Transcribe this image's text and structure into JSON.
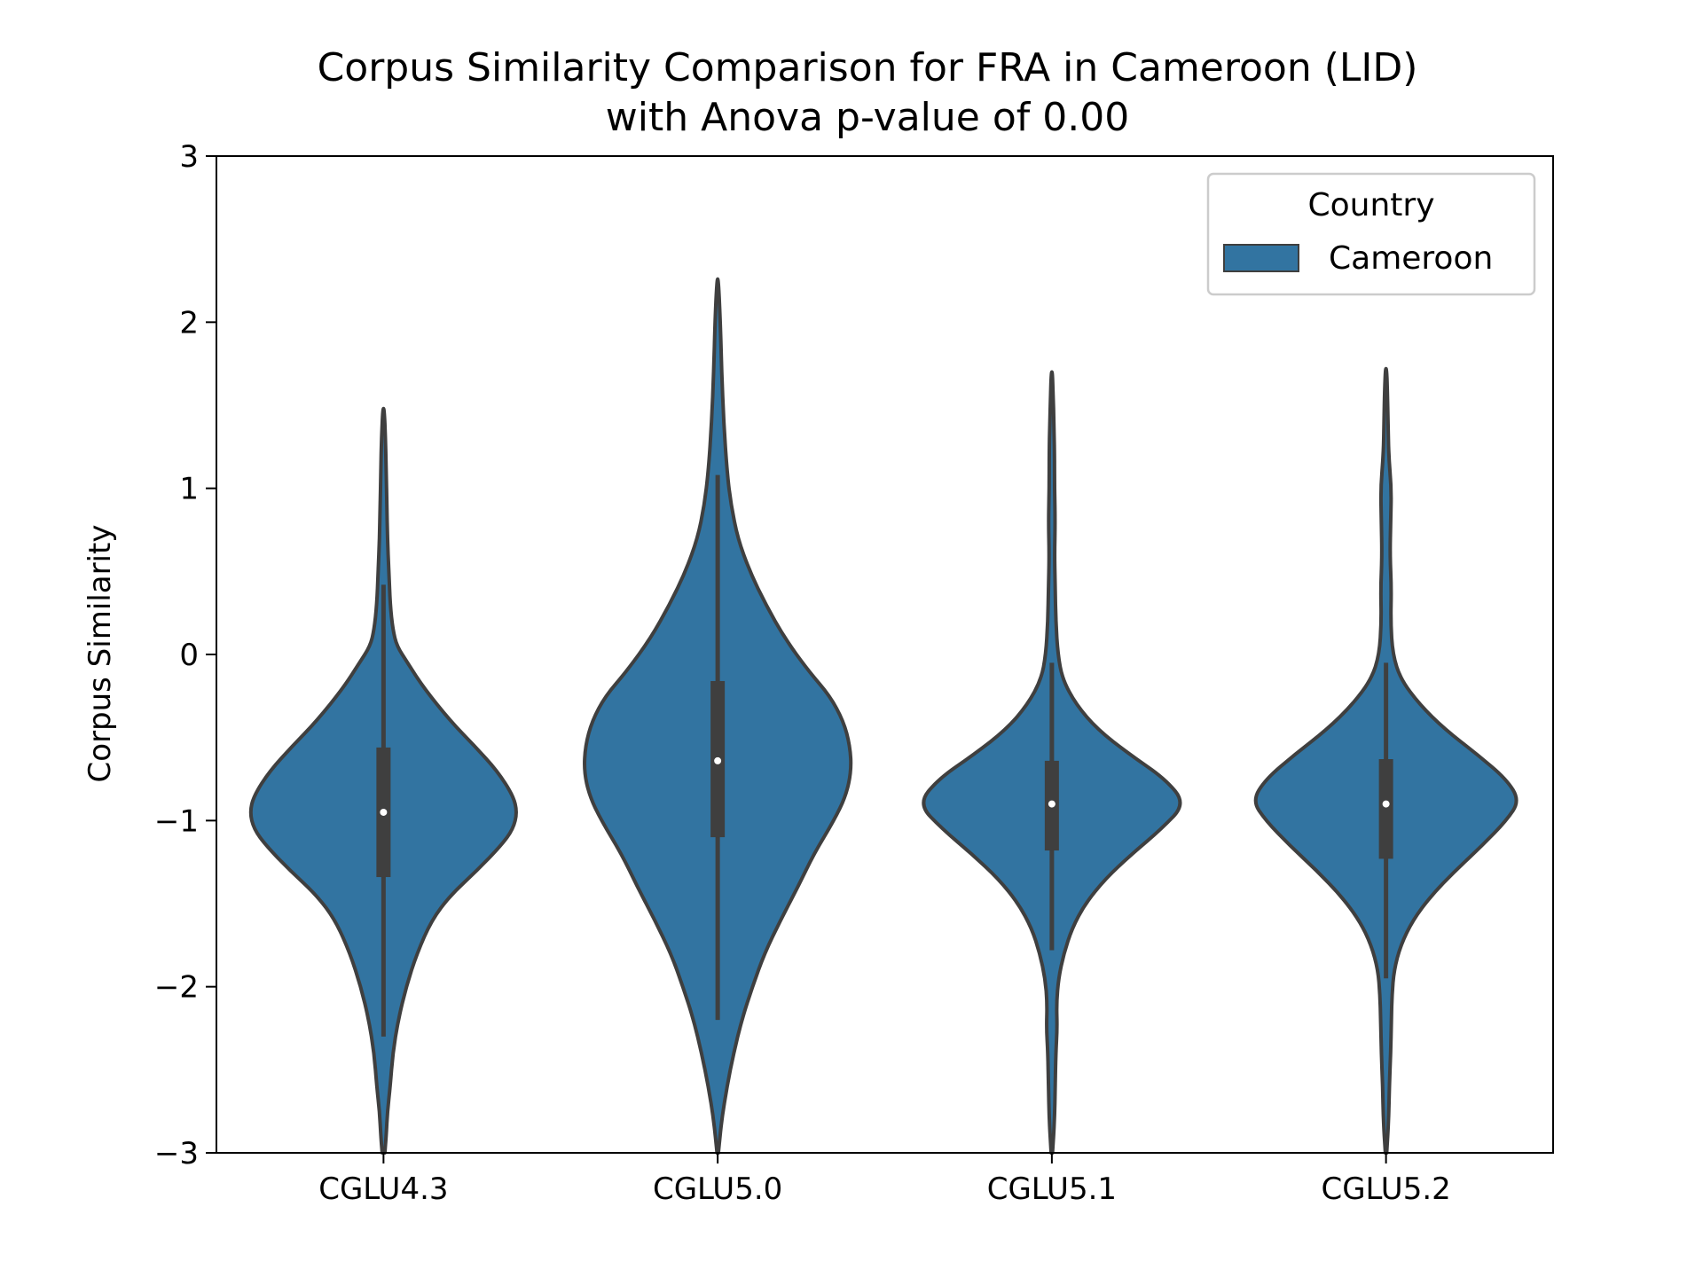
{
  "chart_data": {
    "type": "violin",
    "title": [
      "Corpus Similarity Comparison for FRA in Cameroon (LID)",
      "with Anova p-value of 0.00"
    ],
    "xlabel": "",
    "ylabel": "Corpus Similarity",
    "ylim": [
      -3,
      3
    ],
    "yticks": [
      3,
      2,
      1,
      0,
      -1,
      -2,
      -3
    ],
    "ytick_labels": [
      "3",
      "2",
      "1",
      "0",
      "−1",
      "−2",
      "−3"
    ],
    "categories": [
      "CGLU4.3",
      "CGLU5.0",
      "CGLU5.1",
      "CGLU5.2"
    ],
    "grid": false,
    "legend": {
      "title": "Country",
      "entries": [
        "Cameroon"
      ],
      "placement": "top-right"
    },
    "colors": {
      "fill": "#3274a1",
      "edge": "#3f3f3f",
      "median": "#ffffff",
      "box": "#3f3f3f"
    },
    "series": [
      {
        "name": "Cameroon",
        "violins": [
          {
            "category": "CGLU4.3",
            "median": -0.95,
            "q1": -1.34,
            "q3": -0.56,
            "whisker_low": -2.3,
            "whisker_high": 0.42,
            "density": [
              [
                -3.0,
                0.01
              ],
              [
                -2.9,
                0.02
              ],
              [
                -2.75,
                0.03
              ],
              [
                -2.6,
                0.05
              ],
              [
                -2.4,
                0.07
              ],
              [
                -2.2,
                0.11
              ],
              [
                -2.0,
                0.17
              ],
              [
                -1.8,
                0.25
              ],
              [
                -1.6,
                0.36
              ],
              [
                -1.45,
                0.5
              ],
              [
                -1.3,
                0.7
              ],
              [
                -1.15,
                0.88
              ],
              [
                -1.05,
                0.97
              ],
              [
                -0.95,
                1.0
              ],
              [
                -0.85,
                0.97
              ],
              [
                -0.7,
                0.85
              ],
              [
                -0.55,
                0.68
              ],
              [
                -0.4,
                0.5
              ],
              [
                -0.2,
                0.3
              ],
              [
                -0.05,
                0.18
              ],
              [
                0.05,
                0.1
              ],
              [
                0.15,
                0.07
              ],
              [
                0.3,
                0.05
              ],
              [
                0.5,
                0.04
              ],
              [
                0.7,
                0.03
              ],
              [
                0.9,
                0.025
              ],
              [
                1.1,
                0.02
              ],
              [
                1.3,
                0.015
              ],
              [
                1.48,
                0.005
              ]
            ]
          },
          {
            "category": "CGLU5.0",
            "median": -0.64,
            "q1": -1.1,
            "q3": -0.16,
            "whisker_low": -2.2,
            "whisker_high": 1.08,
            "density": [
              [
                -3.0,
                0.005
              ],
              [
                -2.8,
                0.03
              ],
              [
                -2.6,
                0.07
              ],
              [
                -2.4,
                0.12
              ],
              [
                -2.2,
                0.18
              ],
              [
                -2.0,
                0.26
              ],
              [
                -1.8,
                0.35
              ],
              [
                -1.6,
                0.47
              ],
              [
                -1.4,
                0.6
              ],
              [
                -1.2,
                0.72
              ],
              [
                -1.0,
                0.87
              ],
              [
                -0.85,
                0.96
              ],
              [
                -0.7,
                1.0
              ],
              [
                -0.55,
                0.99
              ],
              [
                -0.4,
                0.94
              ],
              [
                -0.25,
                0.84
              ],
              [
                -0.1,
                0.68
              ],
              [
                0.1,
                0.5
              ],
              [
                0.3,
                0.36
              ],
              [
                0.5,
                0.24
              ],
              [
                0.7,
                0.15
              ],
              [
                0.9,
                0.1
              ],
              [
                1.1,
                0.07
              ],
              [
                1.4,
                0.045
              ],
              [
                1.7,
                0.03
              ],
              [
                2.0,
                0.02
              ],
              [
                2.26,
                0.005
              ]
            ]
          },
          {
            "category": "CGLU5.1",
            "median": -0.9,
            "q1": -1.18,
            "q3": -0.64,
            "whisker_low": -1.78,
            "whisker_high": -0.05,
            "density": [
              [
                -3.0,
                0.005
              ],
              [
                -2.8,
                0.02
              ],
              [
                -2.6,
                0.025
              ],
              [
                -2.4,
                0.03
              ],
              [
                -2.25,
                0.04
              ],
              [
                -2.1,
                0.035
              ],
              [
                -1.95,
                0.05
              ],
              [
                -1.8,
                0.09
              ],
              [
                -1.65,
                0.15
              ],
              [
                -1.5,
                0.25
              ],
              [
                -1.35,
                0.4
              ],
              [
                -1.2,
                0.6
              ],
              [
                -1.05,
                0.82
              ],
              [
                -0.9,
                1.0
              ],
              [
                -0.75,
                0.85
              ],
              [
                -0.6,
                0.58
              ],
              [
                -0.45,
                0.34
              ],
              [
                -0.3,
                0.18
              ],
              [
                -0.15,
                0.08
              ],
              [
                0.0,
                0.045
              ],
              [
                0.2,
                0.03
              ],
              [
                0.4,
                0.025
              ],
              [
                0.6,
                0.02
              ],
              [
                0.8,
                0.025
              ],
              [
                1.0,
                0.02
              ],
              [
                1.2,
                0.02
              ],
              [
                1.4,
                0.015
              ],
              [
                1.55,
                0.01
              ],
              [
                1.7,
                0.004
              ]
            ]
          },
          {
            "category": "CGLU5.2",
            "median": -0.9,
            "q1": -1.23,
            "q3": -0.63,
            "whisker_low": -1.95,
            "whisker_high": -0.05,
            "density": [
              [
                -3.0,
                0.005
              ],
              [
                -2.8,
                0.02
              ],
              [
                -2.6,
                0.025
              ],
              [
                -2.4,
                0.035
              ],
              [
                -2.2,
                0.04
              ],
              [
                -2.05,
                0.045
              ],
              [
                -1.9,
                0.06
              ],
              [
                -1.75,
                0.11
              ],
              [
                -1.6,
                0.2
              ],
              [
                -1.45,
                0.34
              ],
              [
                -1.3,
                0.52
              ],
              [
                -1.15,
                0.72
              ],
              [
                -1.0,
                0.9
              ],
              [
                -0.88,
                1.0
              ],
              [
                -0.75,
                0.9
              ],
              [
                -0.6,
                0.68
              ],
              [
                -0.45,
                0.44
              ],
              [
                -0.3,
                0.25
              ],
              [
                -0.15,
                0.11
              ],
              [
                0.0,
                0.05
              ],
              [
                0.2,
                0.035
              ],
              [
                0.4,
                0.04
              ],
              [
                0.6,
                0.03
              ],
              [
                0.8,
                0.035
              ],
              [
                1.0,
                0.04
              ],
              [
                1.2,
                0.02
              ],
              [
                1.4,
                0.015
              ],
              [
                1.6,
                0.01
              ],
              [
                1.72,
                0.004
              ]
            ]
          }
        ]
      }
    ]
  }
}
